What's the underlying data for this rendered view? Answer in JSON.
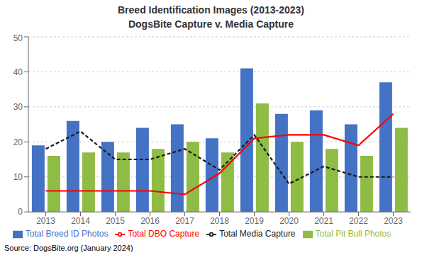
{
  "chart_data": {
    "type": "bar",
    "title": "Breed Identification Images (2013-2023)",
    "subtitle": "DogsBite Capture v. Media Capture",
    "annotations": [
      "Source: DogsBite.org (January 2024)"
    ],
    "categories": [
      "2013",
      "2014",
      "2015",
      "2016",
      "2017",
      "2018",
      "2019",
      "2020",
      "2021",
      "2022",
      "2023"
    ],
    "series": [
      {
        "name": "Total Breed ID Photos",
        "type": "bar",
        "color": "#4472C4",
        "values": [
          19,
          26,
          20,
          24,
          25,
          21,
          41,
          28,
          29,
          25,
          37
        ]
      },
      {
        "name": "Total Pit Bull Photos",
        "type": "bar",
        "color": "#8FBC45",
        "values": [
          16,
          17,
          17,
          18,
          20,
          17,
          31,
          20,
          18,
          16,
          24
        ]
      },
      {
        "name": "Total DBO Capture",
        "type": "line",
        "color": "#FF0000",
        "line_style": "solid",
        "values": [
          6,
          6,
          6,
          6,
          5,
          11,
          21,
          22,
          22,
          19,
          28
        ]
      },
      {
        "name": "Total Media Capture",
        "type": "line",
        "color": "#1A1A1A",
        "line_style": "dashed",
        "values": [
          18,
          23,
          15,
          15,
          18,
          12,
          22,
          8,
          13,
          10,
          10
        ]
      }
    ],
    "ylim": [
      0,
      50
    ],
    "yticks": [
      0,
      10,
      20,
      30,
      40,
      50
    ],
    "grid": true,
    "legend": "bottom"
  }
}
